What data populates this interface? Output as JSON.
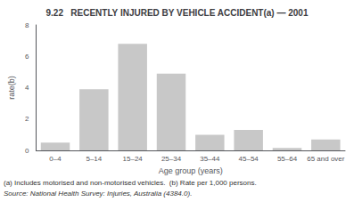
{
  "chart_data": {
    "type": "bar",
    "title": "9.22   RECENTLY INJURED BY VEHICLE ACCIDENT(a) — 2001",
    "categories": [
      "0–4",
      "5–14",
      "15–24",
      "25–34",
      "35–44",
      "45–54",
      "55–64",
      "65 and over"
    ],
    "values": [
      0.5,
      3.9,
      6.8,
      4.9,
      1.0,
      1.3,
      0.15,
      0.7
    ],
    "color": "#c8c8c8",
    "xlabel": "Age group (years)",
    "ylabel": "rate(b)",
    "ylim": [
      0,
      8
    ],
    "yticks": [
      0,
      2,
      4,
      6,
      8
    ],
    "grid": false,
    "annotations": [
      "(a) Includes motorised and non-motorised vehicles.  (b) Rate per 1,000 persons.",
      "Source: National Health Survey: Injuries, Australia (4384.0)."
    ]
  }
}
